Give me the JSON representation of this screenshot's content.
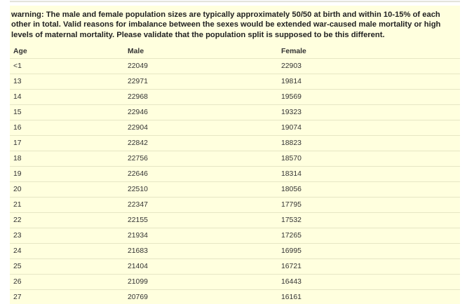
{
  "warning": {
    "text": "warning: The male and female population sizes are typically approximately 50/50 at birth and within 10-15% of each other in total. Valid reasons for imbalance between the sexes would be extended war-caused male mortality or high levels of maternal mortality. Please validate that the population split is supposed to be this different."
  },
  "table": {
    "headers": {
      "age": "Age",
      "male": "Male",
      "female": "Female"
    },
    "rows": [
      {
        "age": "<1",
        "male": "22049",
        "female": "22903"
      },
      {
        "age": "13",
        "male": "22971",
        "female": "19814"
      },
      {
        "age": "14",
        "male": "22968",
        "female": "19569"
      },
      {
        "age": "15",
        "male": "22946",
        "female": "19323"
      },
      {
        "age": "16",
        "male": "22904",
        "female": "19074"
      },
      {
        "age": "17",
        "male": "22842",
        "female": "18823"
      },
      {
        "age": "18",
        "male": "22756",
        "female": "18570"
      },
      {
        "age": "19",
        "male": "22646",
        "female": "18314"
      },
      {
        "age": "20",
        "male": "22510",
        "female": "18056"
      },
      {
        "age": "21",
        "male": "22347",
        "female": "17795"
      },
      {
        "age": "22",
        "male": "22155",
        "female": "17532"
      },
      {
        "age": "23",
        "male": "21934",
        "female": "17265"
      },
      {
        "age": "24",
        "male": "21683",
        "female": "16995"
      },
      {
        "age": "25",
        "male": "21404",
        "female": "16721"
      },
      {
        "age": "26",
        "male": "21099",
        "female": "16443"
      },
      {
        "age": "27",
        "male": "20769",
        "female": "16161"
      }
    ]
  },
  "colors": {
    "panel_background": "#ffffde",
    "row_border": "#e6e6c4",
    "text": "#222222"
  }
}
